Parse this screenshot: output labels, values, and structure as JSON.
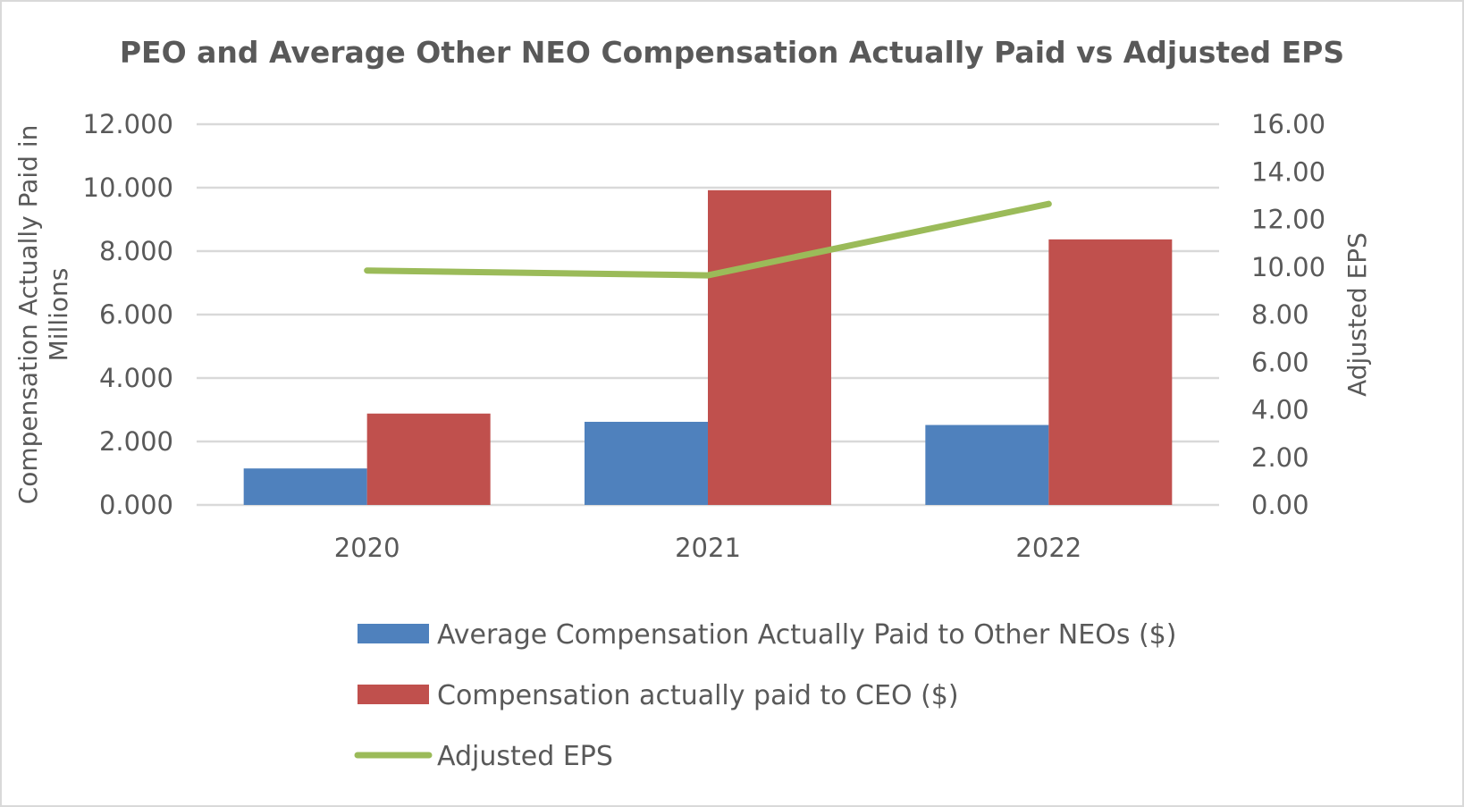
{
  "chart_data": {
    "type": "bar",
    "title": "PEO and Average Other NEO Compensation Actually Paid vs Adjusted EPS",
    "categories": [
      "2020",
      "2021",
      "2022"
    ],
    "series": [
      {
        "name": "Average Compensation Actually Paid to Other NEOs ($)",
        "type": "bar",
        "axis": "left",
        "color": "#4f81bd",
        "values": [
          1.15,
          2.62,
          2.52
        ]
      },
      {
        "name": "Compensation actually paid to CEO ($)",
        "type": "bar",
        "axis": "left",
        "color": "#c0504d",
        "values": [
          2.88,
          9.92,
          8.37
        ]
      },
      {
        "name": "Adjusted EPS",
        "type": "line",
        "axis": "right",
        "color": "#9bbb59",
        "values": [
          9.85,
          9.65,
          12.65
        ]
      }
    ],
    "ylabel": "Compensation Actually Paid in Millions",
    "ylabel_lines": [
      "Compensation Actually Paid in",
      "Millions"
    ],
    "y2label": "Adjusted EPS",
    "ylim": [
      0,
      12
    ],
    "y2lim": [
      0,
      16
    ],
    "yticks": [
      "0.000",
      "2.000",
      "4.000",
      "6.000",
      "8.000",
      "10.000",
      "12.000"
    ],
    "y2ticks": [
      "0.00",
      "2.00",
      "4.00",
      "6.00",
      "8.00",
      "10.00",
      "12.00",
      "14.00",
      "16.00"
    ],
    "gridlines": true,
    "legend_position": "bottom",
    "colors": {
      "gridline": "#d9d9d9",
      "text": "#595959"
    }
  }
}
